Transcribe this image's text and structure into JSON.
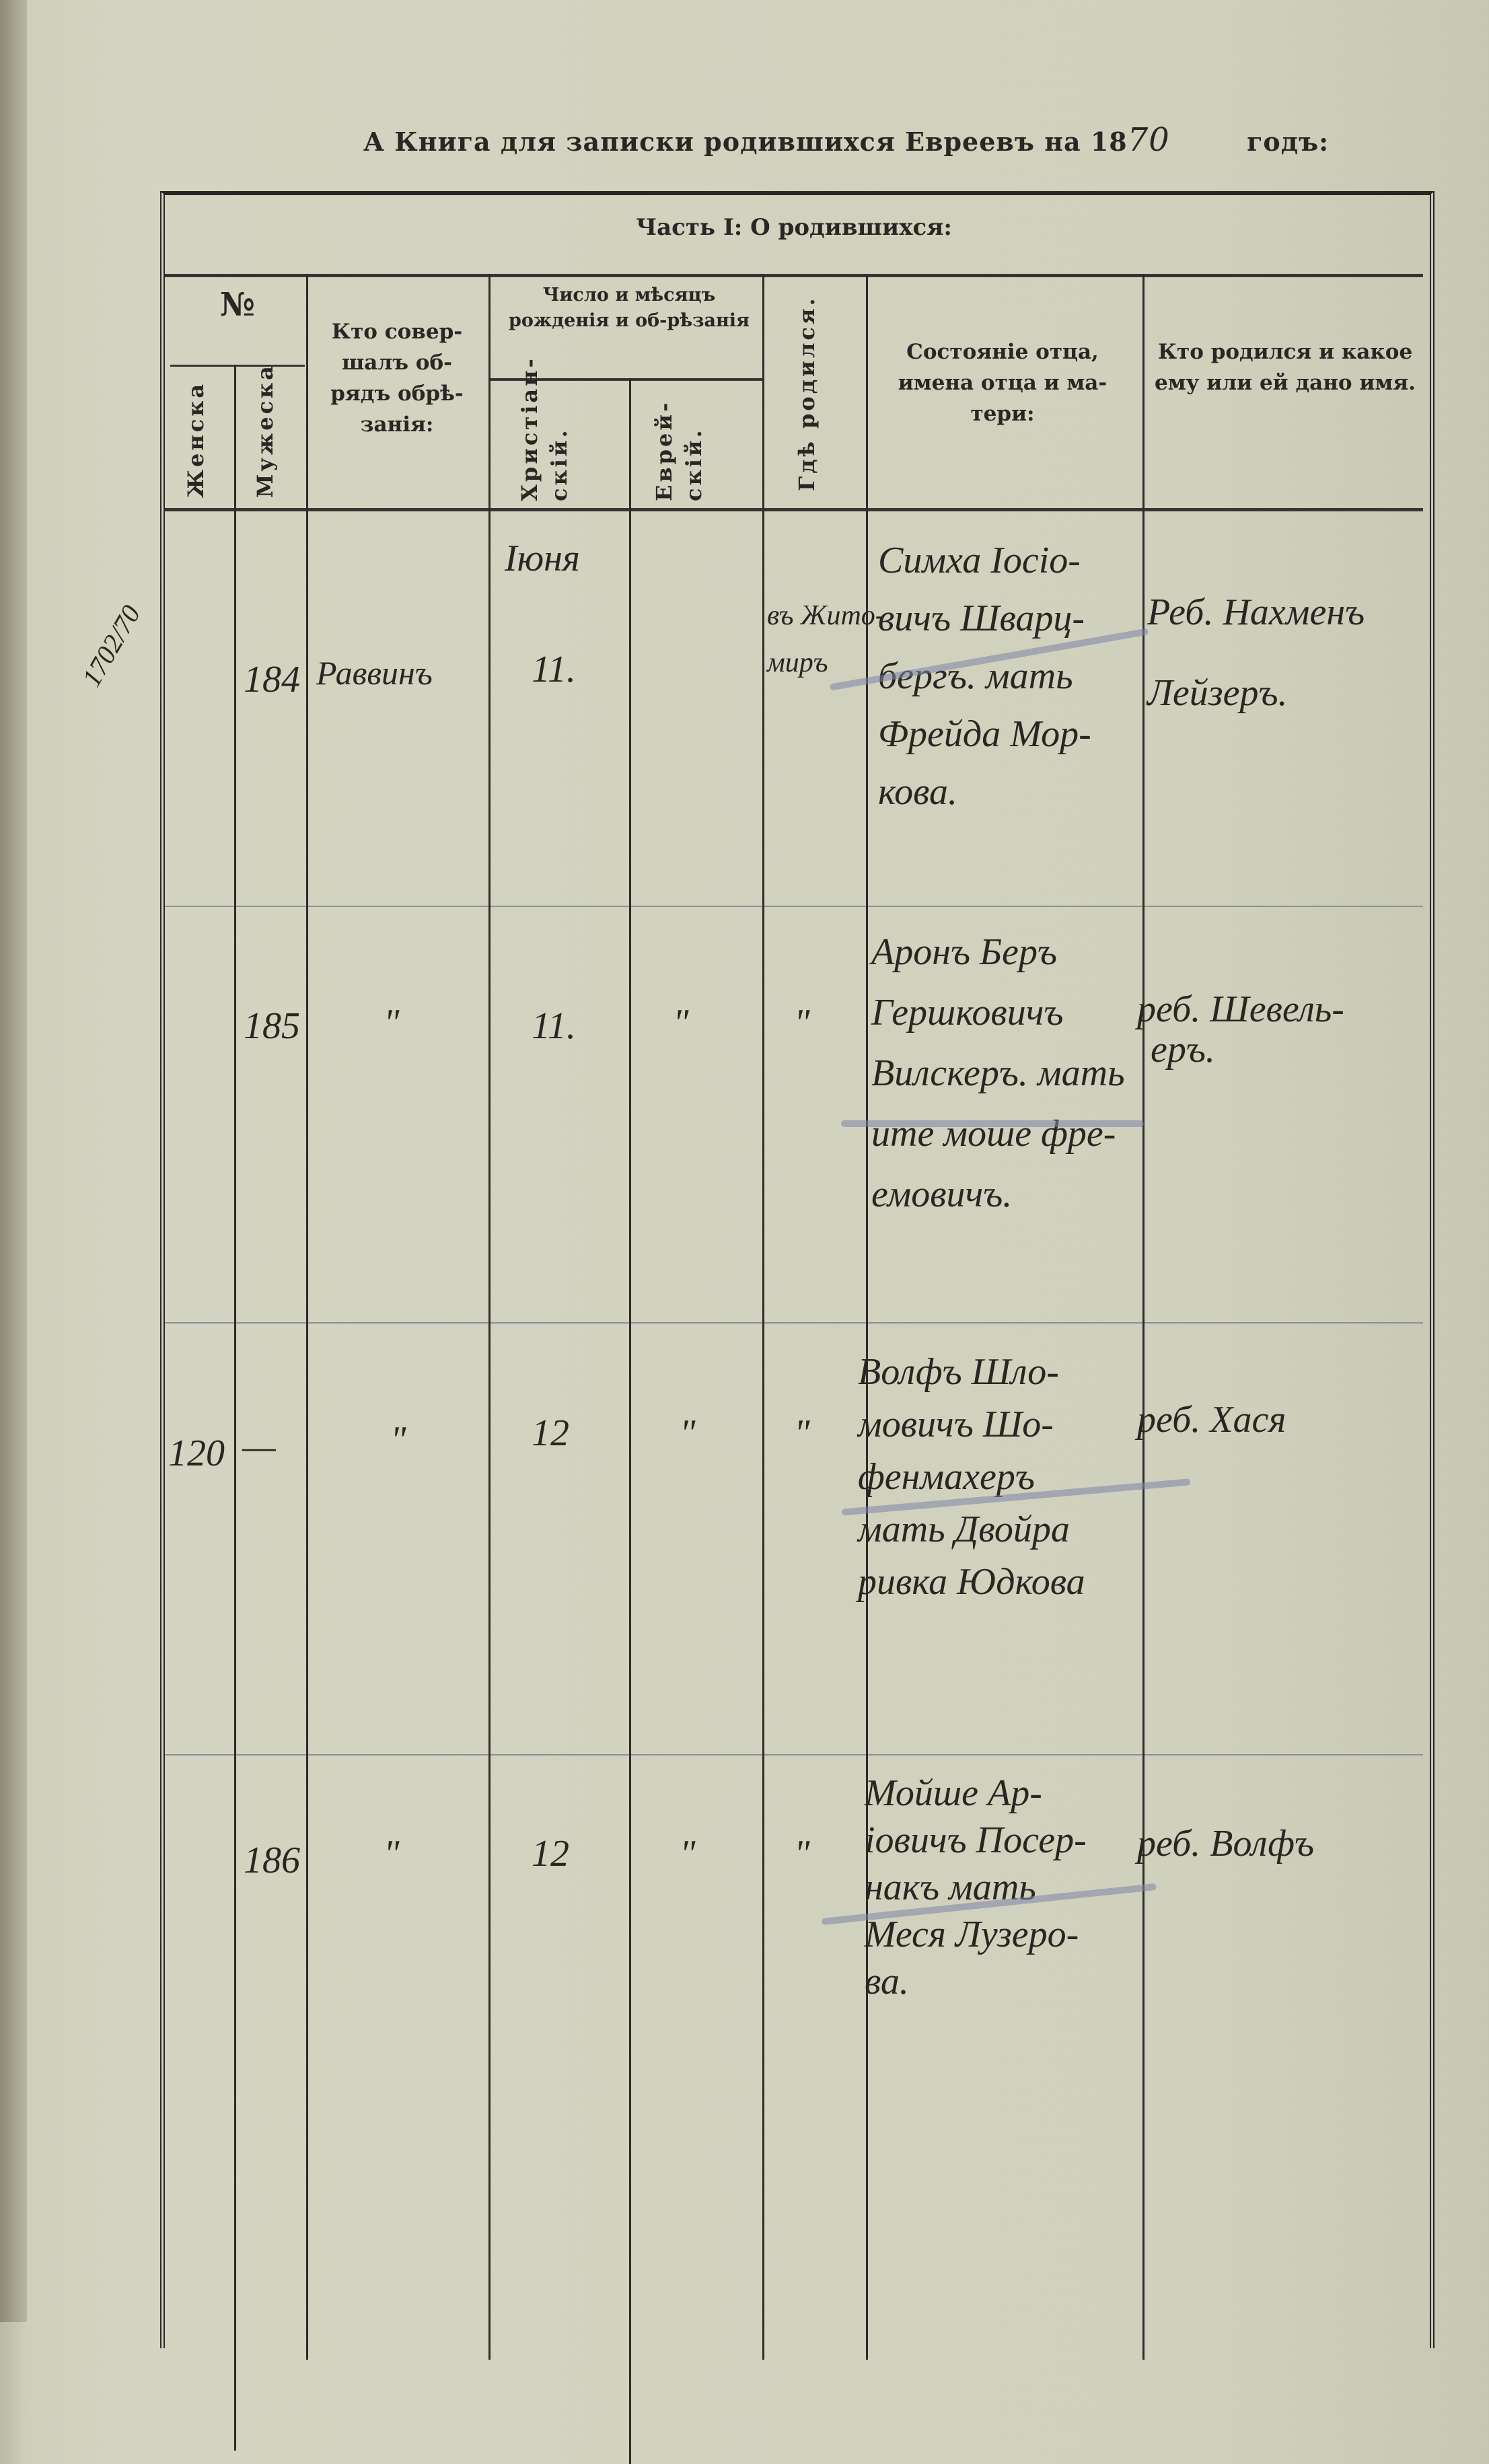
{
  "page": {
    "title_printed": "А Книга для записки родившихся Евреевъ на 18",
    "title_year_handwritten": "70",
    "title_suffix": "годъ:",
    "margin_note": "1702/70"
  },
  "table": {
    "part_title": "Часть I: О родившихся:",
    "headers": {
      "number": "№",
      "female": "Женска",
      "male": "Мужеска",
      "performer": "Кто совер-шалъ об-рядъ обрѣ-занія:",
      "date_group": "Число и мѣсяцъ рожденія и об-рѣзанія",
      "christian": "Христіан-скій.",
      "jewish": "Еврей-скій.",
      "birthplace": "Гдѣ родился.",
      "parents": "Состояніе отца, имена отца и ма-тери:",
      "child": "Кто родился и какое ему или ей дано имя."
    },
    "rows": [
      {
        "female": "",
        "male": "184",
        "performer": "Раввинъ",
        "month": "Іюня",
        "christian_day": "11.",
        "jewish_day": "",
        "birthplace": [
          "въ Жито-",
          "миръ"
        ],
        "parents": [
          "Симха Іосіо-",
          "вичъ Шварц-",
          "бергъ. мать",
          "Фрейда Мор-",
          "кова."
        ],
        "child": [
          "Реб. Нахменъ",
          "Лейзеръ."
        ]
      },
      {
        "female": "",
        "male": "185",
        "performer": "\"",
        "month": "",
        "christian_day": "11.",
        "jewish_day": "\"",
        "birthplace": [
          "\""
        ],
        "parents": [
          "Аронъ Беръ",
          "Гершковичъ",
          "Вилскеръ. мать",
          "ите моше фре-",
          "емовичъ."
        ],
        "child": [
          "реб. Шевель-",
          "еръ."
        ]
      },
      {
        "female": "120",
        "male": "—",
        "performer": "\"",
        "month": "",
        "christian_day": "12",
        "jewish_day": "\"",
        "birthplace": [
          "\""
        ],
        "parents": [
          "Волфъ Шло-",
          "мовичъ Шо-",
          "фенмахеръ",
          "мать Двойра",
          "ривка Юдкова"
        ],
        "child": [
          "реб. Хася"
        ]
      },
      {
        "female": "",
        "male": "186",
        "performer": "\"",
        "month": "",
        "christian_day": "12",
        "jewish_day": "\"",
        "birthplace": [
          "\""
        ],
        "parents": [
          "Мойше Ар-",
          "іовичъ Посер-",
          "накъ мать",
          "Меся Лузеро-",
          "ва."
        ],
        "child": [
          "реб. Волфъ"
        ]
      }
    ]
  }
}
